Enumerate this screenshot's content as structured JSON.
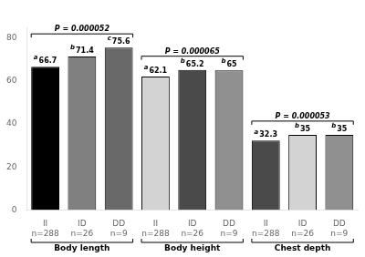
{
  "chart_data": {
    "type": "bar",
    "categories": [
      "II\nn=288",
      "ID\nn=26",
      "DD\nn=9"
    ],
    "groups": [
      {
        "name": "Body length",
        "values": [
          66.7,
          71.4,
          75.6
        ],
        "colors": [
          "#000000",
          "#808080",
          "#696969"
        ],
        "letters": [
          "a",
          "b",
          "c"
        ],
        "p_value": "P = 0.000052"
      },
      {
        "name": "Body height",
        "values": [
          62.1,
          65.2,
          65
        ],
        "colors": [
          "#d3d3d3",
          "#4a4a4a",
          "#909090"
        ],
        "letters": [
          "a",
          "b",
          "b"
        ],
        "p_value": "P = 0.000065"
      },
      {
        "name": "Chest depth",
        "values": [
          32.3,
          35,
          35
        ],
        "colors": [
          "#4a4a4a",
          "#d3d3d3",
          "#909090"
        ],
        "letters": [
          "a",
          "b",
          "b"
        ],
        "p_value": "P = 0.000053"
      }
    ],
    "ylim": [
      0,
      85
    ],
    "yticks": [
      0,
      20,
      40,
      60,
      80
    ],
    "data_labels": true,
    "grid": false
  }
}
